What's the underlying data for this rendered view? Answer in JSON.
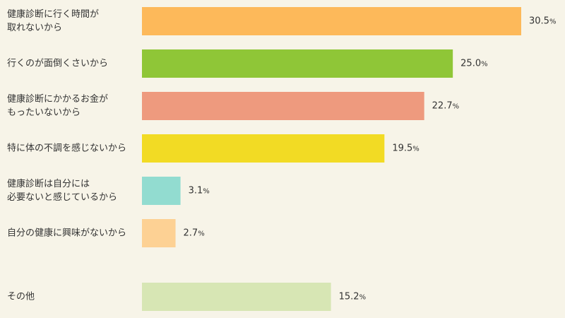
{
  "chart_data": {
    "type": "bar",
    "orientation": "horizontal",
    "categories": [
      [
        "健康診断に行く時間が",
        "取れないから"
      ],
      [
        "行くのが面倒くさいから"
      ],
      [
        "健康診断にかかるお金が",
        "もったいないから"
      ],
      [
        "特に体の不調を感じないから"
      ],
      [
        "健康診断は自分には",
        "必要ないと感じているから"
      ],
      [
        "自分の健康に興味がないから"
      ],
      [
        "その他"
      ]
    ],
    "values": [
      30.5,
      25.0,
      22.7,
      19.5,
      3.1,
      2.7,
      15.2
    ],
    "value_labels": [
      "30.5",
      "25.0",
      "22.7",
      "19.5",
      "3.1",
      "2.7",
      "15.2"
    ],
    "unit": "%",
    "colors": [
      "#fdb95a",
      "#8fc637",
      "#ee9a7e",
      "#f2db24",
      "#92dcd0",
      "#fdd194",
      "#d7e6b4"
    ],
    "xlim": [
      0,
      30.5
    ],
    "grid": false,
    "legend": "none"
  }
}
